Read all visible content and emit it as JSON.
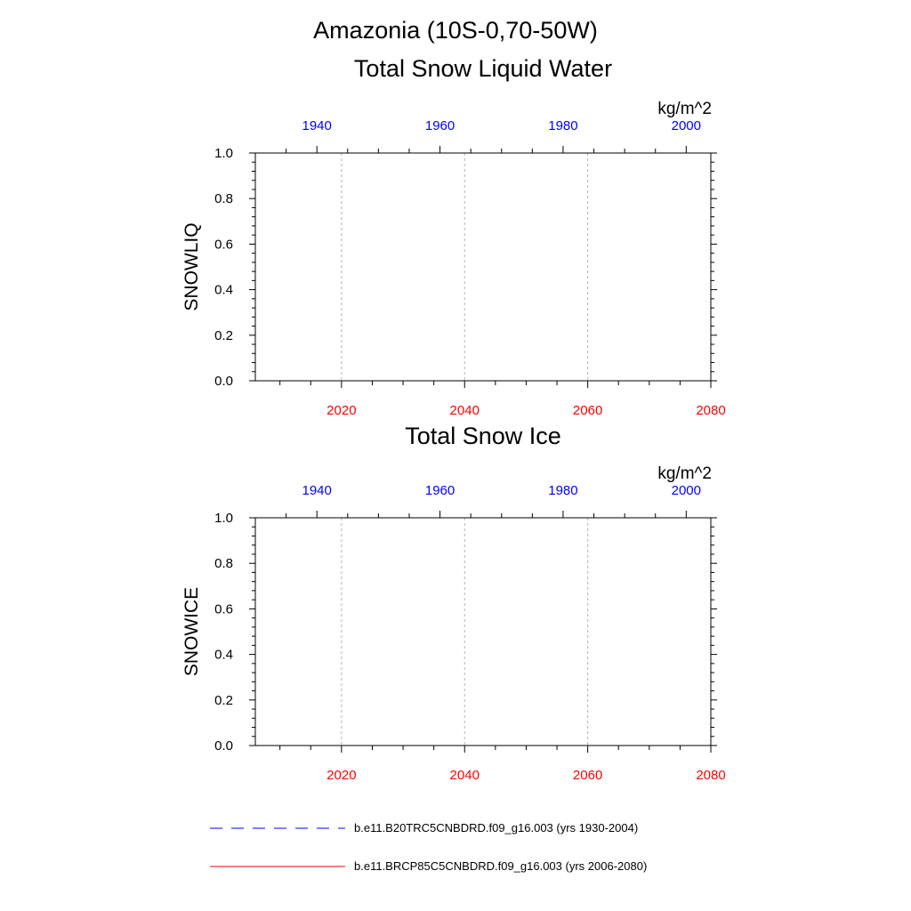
{
  "figure": {
    "title": "Amazonia (10S-0,70-50W)"
  },
  "colors": {
    "top_axis": "#0000ff",
    "bottom_axis": "#ff0000",
    "axis": "#000000",
    "grid": "#b4b4b4"
  },
  "chart_data": [
    {
      "type": "line",
      "title": "Total Snow Liquid Water",
      "units": "kg/m^2",
      "ylabel": "SNOWLIQ",
      "ylim": [
        0,
        1
      ],
      "yticks": [
        "0.0",
        "0.2",
        "0.4",
        "0.6",
        "0.8",
        "1.0"
      ],
      "xlim_bottom": [
        2006,
        2080
      ],
      "xticks_bottom": [
        "2020",
        "2040",
        "2060",
        "2080"
      ],
      "xlim_top": [
        1930,
        2004
      ],
      "xticks_top": [
        "1940",
        "1960",
        "1980",
        "2000"
      ],
      "grid": "vertical dashed at bottom-axis major ticks",
      "series": [
        {
          "name": "b.e11.B20TRC5CNBDRD.f09_g16.003 (yrs 1930-2004)",
          "axis": "top",
          "color": "#0000ff",
          "style": "dashed",
          "x": [
            1930,
            2004
          ],
          "y": [
            0,
            0
          ]
        },
        {
          "name": "b.e11.BRCP85C5CNBDRD.f09_g16.003 (yrs 2006-2080)",
          "axis": "bottom",
          "color": "#ff0000",
          "style": "solid",
          "x": [
            2006,
            2080
          ],
          "y": [
            0,
            0
          ]
        }
      ]
    },
    {
      "type": "line",
      "title": "Total Snow Ice",
      "units": "kg/m^2",
      "ylabel": "SNOWICE",
      "ylim": [
        0,
        1
      ],
      "yticks": [
        "0.0",
        "0.2",
        "0.4",
        "0.6",
        "0.8",
        "1.0"
      ],
      "xlim_bottom": [
        2006,
        2080
      ],
      "xticks_bottom": [
        "2020",
        "2040",
        "2060",
        "2080"
      ],
      "xlim_top": [
        1930,
        2004
      ],
      "xticks_top": [
        "1940",
        "1960",
        "1980",
        "2000"
      ],
      "grid": "vertical dashed at bottom-axis major ticks",
      "series": [
        {
          "name": "b.e11.B20TRC5CNBDRD.f09_g16.003 (yrs 1930-2004)",
          "axis": "top",
          "color": "#0000ff",
          "style": "dashed",
          "x": [
            1930,
            2004
          ],
          "y": [
            0,
            0
          ]
        },
        {
          "name": "b.e11.BRCP85C5CNBDRD.f09_g16.003 (yrs 2006-2080)",
          "axis": "bottom",
          "color": "#ff0000",
          "style": "solid",
          "x": [
            2006,
            2080
          ],
          "y": [
            0,
            0
          ]
        }
      ]
    }
  ],
  "legend": {
    "items": [
      {
        "label": "b.e11.B20TRC5CNBDRD.f09_g16.003 (yrs 1930-2004)",
        "color": "#0000ff",
        "style": "dashed"
      },
      {
        "label": "b.e11.BRCP85C5CNBDRD.f09_g16.003 (yrs 2006-2080)",
        "color": "#ff0000",
        "style": "solid"
      }
    ]
  }
}
